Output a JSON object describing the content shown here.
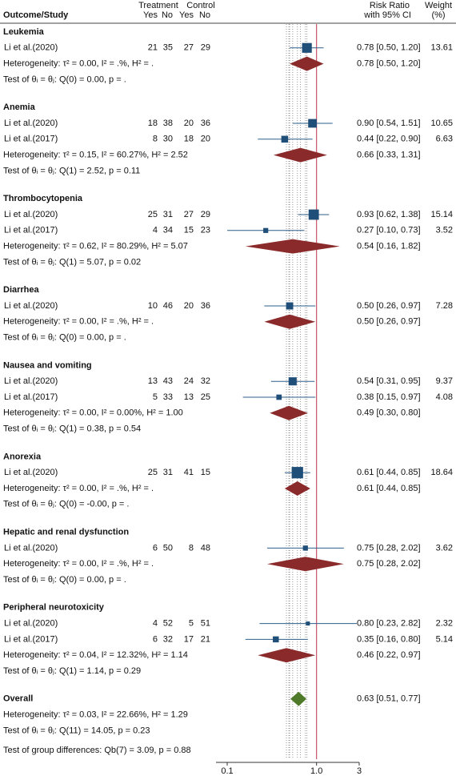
{
  "chart_data": {
    "type": "forest",
    "header": {
      "study": "Outcome/Study",
      "treatment": "Treatment",
      "control": "Control",
      "yes": "Yes",
      "no": "No",
      "effect": "Risk Ratio",
      "effect_sub": "with 95% CI",
      "weight": "Weight",
      "weight_sub": "(%)"
    },
    "log_scale": true,
    "xlim": [
      0.1,
      3
    ],
    "xticks": [
      0.1,
      {
        "value": 1,
        "label": "1.0"
      },
      3
    ],
    "null_line": 1,
    "study_color": "#1f4e79",
    "ci_color": "#2e5f8a",
    "summary_color": "#8b2a2a",
    "overall_color": "#4e7a2a",
    "groups": [
      {
        "name": "Leukemia",
        "studies": [
          {
            "name": "Li et al.(2020)",
            "t_yes": 21,
            "t_no": 35,
            "c_yes": 27,
            "c_no": 29,
            "rr": 0.78,
            "lo": 0.5,
            "hi": 1.2,
            "ci_label": "0.78 [0.50, 1.20]",
            "weight": 13.61
          }
        ],
        "summary": {
          "rr": 0.78,
          "lo": 0.5,
          "hi": 1.2,
          "ci_label": "0.78 [0.50, 1.20]"
        },
        "heterogeneity": "Heterogeneity: τ² = 0.00, I² = .%, H² = .",
        "test": "Test of θᵢ = θⱼ: Q(0) = 0.00, p = ."
      },
      {
        "name": "Anemia",
        "studies": [
          {
            "name": "Li et al.(2020)",
            "t_yes": 18,
            "t_no": 38,
            "c_yes": 20,
            "c_no": 36,
            "rr": 0.9,
            "lo": 0.54,
            "hi": 1.51,
            "ci_label": "0.90 [0.54, 1.51]",
            "weight": 10.65
          },
          {
            "name": "Li et al.(2017)",
            "t_yes": 8,
            "t_no": 30,
            "c_yes": 18,
            "c_no": 20,
            "rr": 0.44,
            "lo": 0.22,
            "hi": 0.9,
            "ci_label": "0.44 [0.22, 0.90]",
            "weight": 6.63
          }
        ],
        "summary": {
          "rr": 0.66,
          "lo": 0.33,
          "hi": 1.31,
          "ci_label": "0.66 [0.33, 1.31]"
        },
        "heterogeneity": "Heterogeneity: τ² = 0.15, I² = 60.27%, H² = 2.52",
        "test": "Test of θᵢ = θⱼ: Q(1) = 2.52, p = 0.11"
      },
      {
        "name": "Thrombocytopenia",
        "studies": [
          {
            "name": "Li et al.(2020)",
            "t_yes": 25,
            "t_no": 31,
            "c_yes": 27,
            "c_no": 29,
            "rr": 0.93,
            "lo": 0.62,
            "hi": 1.38,
            "ci_label": "0.93 [0.62, 1.38]",
            "weight": 15.14
          },
          {
            "name": "Li et al.(2017)",
            "t_yes": 4,
            "t_no": 34,
            "c_yes": 15,
            "c_no": 23,
            "rr": 0.27,
            "lo": 0.1,
            "hi": 0.73,
            "ci_label": "0.27 [0.10, 0.73]",
            "weight": 3.52
          }
        ],
        "summary": {
          "rr": 0.54,
          "lo": 0.16,
          "hi": 1.82,
          "ci_label": "0.54 [0.16, 1.82]"
        },
        "heterogeneity": "Heterogeneity: τ² = 0.62, I² = 80.29%, H² = 5.07",
        "test": "Test of θᵢ = θⱼ: Q(1) = 5.07, p = 0.02"
      },
      {
        "name": "Diarrhea",
        "studies": [
          {
            "name": "Li et al.(2020)",
            "t_yes": 10,
            "t_no": 46,
            "c_yes": 20,
            "c_no": 36,
            "rr": 0.5,
            "lo": 0.26,
            "hi": 0.97,
            "ci_label": "0.50 [0.26, 0.97]",
            "weight": 7.28
          }
        ],
        "summary": {
          "rr": 0.5,
          "lo": 0.26,
          "hi": 0.97,
          "ci_label": "0.50 [0.26, 0.97]"
        },
        "heterogeneity": "Heterogeneity: τ² = 0.00, I² = .%, H² = .",
        "test": "Test of θᵢ = θⱼ: Q(0) = 0.00, p = ."
      },
      {
        "name": "Nausea and vomiting",
        "studies": [
          {
            "name": "Li et al.(2020)",
            "t_yes": 13,
            "t_no": 43,
            "c_yes": 24,
            "c_no": 32,
            "rr": 0.54,
            "lo": 0.31,
            "hi": 0.95,
            "ci_label": "0.54 [0.31, 0.95]",
            "weight": 9.37
          },
          {
            "name": "Li et al.(2017)",
            "t_yes": 5,
            "t_no": 33,
            "c_yes": 13,
            "c_no": 25,
            "rr": 0.38,
            "lo": 0.15,
            "hi": 0.97,
            "ci_label": "0.38 [0.15, 0.97]",
            "weight": 4.08
          }
        ],
        "summary": {
          "rr": 0.49,
          "lo": 0.3,
          "hi": 0.8,
          "ci_label": "0.49 [0.30, 0.80]"
        },
        "heterogeneity": "Heterogeneity: τ² = 0.00, I² = 0.00%, H² = 1.00",
        "test": "Test of θᵢ = θⱼ: Q(1) = 0.38, p = 0.54"
      },
      {
        "name": "Anorexia",
        "studies": [
          {
            "name": "Li et al.(2020)",
            "t_yes": 25,
            "t_no": 31,
            "c_yes": 41,
            "c_no": 15,
            "rr": 0.61,
            "lo": 0.44,
            "hi": 0.85,
            "ci_label": "0.61 [0.44, 0.85]",
            "weight": 18.64
          }
        ],
        "summary": {
          "rr": 0.61,
          "lo": 0.44,
          "hi": 0.85,
          "ci_label": "0.61 [0.44, 0.85]"
        },
        "heterogeneity": "Heterogeneity: τ² = 0.00, I² = .%, H² = .",
        "test": "Test of θᵢ = θⱼ: Q(0) = -0.00, p = ."
      },
      {
        "name": "Hepatic and renal dysfunction",
        "studies": [
          {
            "name": "Li et al.(2020)",
            "t_yes": 6,
            "t_no": 50,
            "c_yes": 8,
            "c_no": 48,
            "rr": 0.75,
            "lo": 0.28,
            "hi": 2.02,
            "ci_label": "0.75 [0.28, 2.02]",
            "weight": 3.62
          }
        ],
        "summary": {
          "rr": 0.75,
          "lo": 0.28,
          "hi": 2.02,
          "ci_label": "0.75 [0.28, 2.02]"
        },
        "heterogeneity": "Heterogeneity: τ² = 0.00, I² = .%, H² = .",
        "test": "Test of θᵢ = θⱼ: Q(0) = 0.00, p = ."
      },
      {
        "name": "Peripheral neurotoxicity",
        "studies": [
          {
            "name": "Li et al.(2020)",
            "t_yes": 4,
            "t_no": 52,
            "c_yes": 5,
            "c_no": 51,
            "rr": 0.8,
            "lo": 0.23,
            "hi": 2.82,
            "ci_label": "0.80 [0.23, 2.82]",
            "weight": 2.32
          },
          {
            "name": "Li et al.(2017)",
            "t_yes": 6,
            "t_no": 32,
            "c_yes": 17,
            "c_no": 21,
            "rr": 0.35,
            "lo": 0.16,
            "hi": 0.8,
            "ci_label": "0.35 [0.16, 0.80]",
            "weight": 5.14
          }
        ],
        "summary": {
          "rr": 0.46,
          "lo": 0.22,
          "hi": 0.97,
          "ci_label": "0.46 [0.22, 0.97]"
        },
        "heterogeneity": "Heterogeneity: τ² = 0.04, I² = 12.32%, H² = 1.14",
        "test": "Test of θᵢ = θⱼ: Q(1) = 1.14, p = 0.29"
      }
    ],
    "overall": {
      "name": "Overall",
      "rr": 0.63,
      "lo": 0.51,
      "hi": 0.77,
      "ci_label": "0.63 [0.51, 0.77]",
      "heterogeneity": "Heterogeneity: τ² = 0.03, I² = 22.66%, H² = 1.29",
      "test": "Test of θᵢ = θⱼ: Q(11) = 14.05, p = 0.23"
    },
    "group_test": "Test of group differences: Qb(7) = 3.09, p = 0.88"
  }
}
